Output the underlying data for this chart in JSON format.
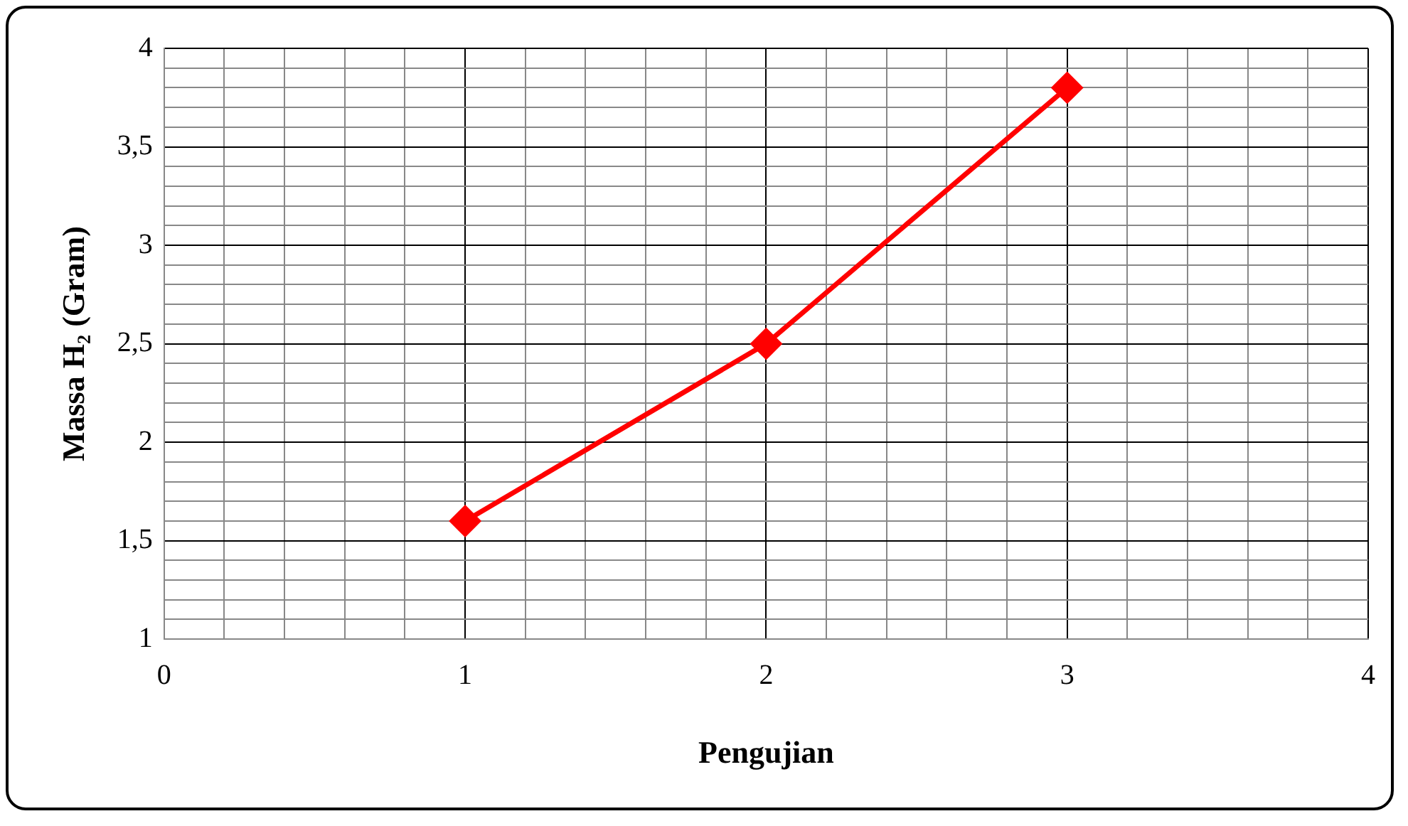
{
  "chart_data": {
    "type": "line",
    "xlabel": "Pengujian",
    "ylabel": "Massa H₂ (Gram)",
    "x": [
      1,
      2,
      3
    ],
    "series": [
      {
        "color": "#ff0000",
        "values": [
          1.6,
          2.5,
          3.8
        ]
      }
    ],
    "xlim": [
      0,
      4
    ],
    "xticks": [
      0,
      {
        "value": 0.2,
        "label": null
      },
      {
        "value": 0.4,
        "label": null
      },
      {
        "value": 0.6,
        "label": null
      },
      {
        "value": 0.8,
        "label": null
      },
      1,
      {
        "value": 1.2,
        "label": null
      },
      {
        "value": 1.4,
        "label": null
      },
      {
        "value": 1.6,
        "label": null
      },
      {
        "value": 1.8,
        "label": null
      },
      2,
      {
        "value": 2.2,
        "label": null
      },
      {
        "value": 2.4,
        "label": null
      },
      {
        "value": 2.6,
        "label": null
      },
      {
        "value": 2.8,
        "label": null
      },
      3,
      {
        "value": 3.2,
        "label": null
      },
      {
        "value": 3.4,
        "label": null
      },
      {
        "value": 3.6,
        "label": null
      },
      {
        "value": 3.8,
        "label": null
      },
      4
    ],
    "ylim": [
      1,
      4
    ],
    "yticks": [
      1,
      {
        "value": 1.1,
        "label": null
      },
      {
        "value": 1.2,
        "label": null
      },
      {
        "value": 1.3,
        "label": null
      },
      {
        "value": 1.4,
        "label": null
      },
      {
        "value": 1.5,
        "label": "1,5"
      },
      {
        "value": 1.6,
        "label": null
      },
      {
        "value": 1.7,
        "label": null
      },
      {
        "value": 1.8,
        "label": null
      },
      {
        "value": 1.9,
        "label": null
      },
      2,
      {
        "value": 2.1,
        "label": null
      },
      {
        "value": 2.2,
        "label": null
      },
      {
        "value": 2.3,
        "label": null
      },
      {
        "value": 2.4,
        "label": null
      },
      {
        "value": 2.5,
        "label": "2,5"
      },
      {
        "value": 2.6,
        "label": null
      },
      {
        "value": 2.7,
        "label": null
      },
      {
        "value": 2.8,
        "label": null
      },
      {
        "value": 2.9,
        "label": null
      },
      3,
      {
        "value": 3.1,
        "label": null
      },
      {
        "value": 3.2,
        "label": null
      },
      {
        "value": 3.3,
        "label": null
      },
      {
        "value": 3.4,
        "label": null
      },
      {
        "value": 3.5,
        "label": "3,5"
      },
      {
        "value": 3.6,
        "label": null
      },
      {
        "value": 3.7,
        "label": null
      },
      {
        "value": 3.8,
        "label": null
      },
      {
        "value": 3.9,
        "label": null
      },
      4
    ],
    "grid": true,
    "legend": false,
    "marker": "diamond",
    "line_style": "solid"
  }
}
